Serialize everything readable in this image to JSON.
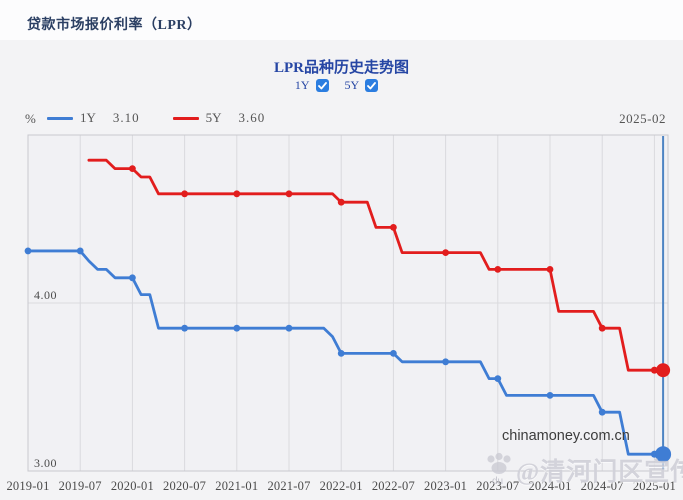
{
  "page": {
    "header_title": "贷款市场报价利率（LPR）"
  },
  "chart": {
    "title": "LPR品种历史走势图",
    "unit_label": "%",
    "current_period": "2025-02",
    "checkboxes": [
      {
        "label": "1Y",
        "checked": true
      },
      {
        "label": "5Y",
        "checked": true
      }
    ],
    "legend": [
      {
        "label": "1Y",
        "value": "3.10",
        "color": "#3f7dd4"
      },
      {
        "label": "5Y",
        "value": "3.60",
        "color": "#e21d1d"
      }
    ]
  },
  "watermarks": {
    "site": "chinamoney.com.cn",
    "overlay": "@清河门区宣传",
    "overlay_sub": "du"
  },
  "chart_data": {
    "type": "line",
    "title": "LPR品种历史走势图",
    "ylabel": "%",
    "ylim": [
      3.0,
      5.0
    ],
    "y_ticks": [
      {
        "label": "4.00",
        "value": 4.0
      },
      {
        "label": "3.00",
        "value": 3.0
      }
    ],
    "x_start": "2019-01",
    "x_end": "2025-02",
    "x_tick_labels": [
      "2019-01",
      "2019-07",
      "2020-01",
      "2020-07",
      "2021-01",
      "2021-07",
      "2022-01",
      "2022-07",
      "2023-01",
      "2023-07",
      "2024-01",
      "2024-07",
      "2025-01"
    ],
    "marker_every_months": 6,
    "current_line_color": "#4d84c3",
    "grid": true,
    "legend_position": "top-left",
    "series": [
      {
        "name": "1Y",
        "color": "#3f7dd4",
        "start_month": "2019-01",
        "start_index": 0,
        "latest_value": 3.1,
        "monthly_values": [
          4.31,
          4.31,
          4.31,
          4.31,
          4.31,
          4.31,
          4.31,
          4.25,
          4.2,
          4.2,
          4.15,
          4.15,
          4.15,
          4.05,
          4.05,
          3.85,
          3.85,
          3.85,
          3.85,
          3.85,
          3.85,
          3.85,
          3.85,
          3.85,
          3.85,
          3.85,
          3.85,
          3.85,
          3.85,
          3.85,
          3.85,
          3.85,
          3.85,
          3.85,
          3.85,
          3.8,
          3.7,
          3.7,
          3.7,
          3.7,
          3.7,
          3.7,
          3.7,
          3.65,
          3.65,
          3.65,
          3.65,
          3.65,
          3.65,
          3.65,
          3.65,
          3.65,
          3.65,
          3.55,
          3.55,
          3.45,
          3.45,
          3.45,
          3.45,
          3.45,
          3.45,
          3.45,
          3.45,
          3.45,
          3.45,
          3.45,
          3.35,
          3.35,
          3.35,
          3.1,
          3.1,
          3.1,
          3.1,
          3.1
        ]
      },
      {
        "name": "5Y",
        "color": "#e21d1d",
        "start_month": "2019-08",
        "start_index": 7,
        "latest_value": 3.6,
        "monthly_values": [
          4.85,
          4.85,
          4.85,
          4.8,
          4.8,
          4.8,
          4.75,
          4.75,
          4.65,
          4.65,
          4.65,
          4.65,
          4.65,
          4.65,
          4.65,
          4.65,
          4.65,
          4.65,
          4.65,
          4.65,
          4.65,
          4.65,
          4.65,
          4.65,
          4.65,
          4.65,
          4.65,
          4.65,
          4.65,
          4.6,
          4.6,
          4.6,
          4.6,
          4.45,
          4.45,
          4.45,
          4.3,
          4.3,
          4.3,
          4.3,
          4.3,
          4.3,
          4.3,
          4.3,
          4.3,
          4.3,
          4.2,
          4.2,
          4.2,
          4.2,
          4.2,
          4.2,
          4.2,
          4.2,
          3.95,
          3.95,
          3.95,
          3.95,
          3.95,
          3.85,
          3.85,
          3.85,
          3.6,
          3.6,
          3.6,
          3.6,
          3.6
        ]
      }
    ]
  }
}
